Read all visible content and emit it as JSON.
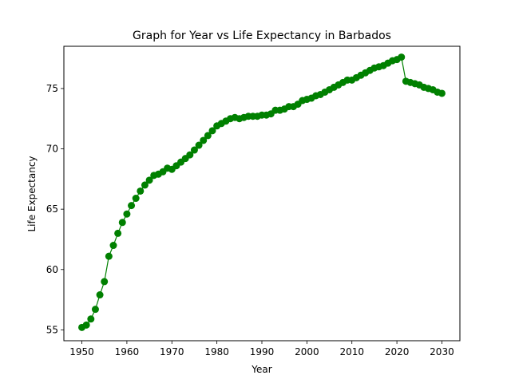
{
  "chart_data": {
    "type": "line",
    "title": "Graph for Year vs Life Expectancy in Barbados",
    "xlabel": "Year",
    "ylabel": "Life Expectancy",
    "xlim": [
      1946,
      2034
    ],
    "ylim": [
      54.1,
      78.5
    ],
    "xticks": [
      1950,
      1960,
      1970,
      1980,
      1990,
      2000,
      2010,
      2020,
      2030
    ],
    "yticks": [
      55,
      60,
      65,
      70,
      75
    ],
    "grid": false,
    "line_color": "#008000",
    "marker": "circle",
    "series": [
      {
        "x": [
          1950,
          1951,
          1952,
          1953,
          1954,
          1955,
          1956,
          1957,
          1958,
          1959,
          1960,
          1961,
          1962,
          1963,
          1964,
          1965,
          1966,
          1967,
          1968,
          1969,
          1970,
          1971,
          1972,
          1973,
          1974,
          1975,
          1976,
          1977,
          1978,
          1979,
          1980,
          1981,
          1982,
          1983,
          1984,
          1985,
          1986,
          1987,
          1988,
          1989,
          1990,
          1991,
          1992,
          1993,
          1994,
          1995,
          1996,
          1997,
          1998,
          1999,
          2000,
          2001,
          2002,
          2003,
          2004,
          2005,
          2006,
          2007,
          2008,
          2009,
          2010,
          2011,
          2012,
          2013,
          2014,
          2015,
          2016,
          2017,
          2018,
          2019,
          2020,
          2021,
          2022,
          2023,
          2024,
          2025,
          2026,
          2027,
          2028,
          2029,
          2030
        ],
        "y": [
          55.2,
          55.4,
          55.9,
          56.7,
          57.9,
          59.0,
          61.1,
          62.0,
          63.0,
          63.9,
          64.6,
          65.3,
          65.9,
          66.5,
          67.0,
          67.4,
          67.8,
          67.9,
          68.1,
          68.4,
          68.3,
          68.6,
          68.9,
          69.2,
          69.5,
          69.9,
          70.3,
          70.7,
          71.1,
          71.5,
          71.9,
          72.1,
          72.3,
          72.5,
          72.6,
          72.5,
          72.6,
          72.7,
          72.7,
          72.7,
          72.8,
          72.8,
          72.9,
          73.2,
          73.2,
          73.3,
          73.5,
          73.5,
          73.7,
          74.0,
          74.1,
          74.2,
          74.4,
          74.5,
          74.7,
          74.9,
          75.1,
          75.3,
          75.5,
          75.7,
          75.7,
          75.9,
          76.1,
          76.3,
          76.5,
          76.7,
          76.8,
          76.9,
          77.1,
          77.3,
          77.4,
          77.6,
          75.6,
          75.5,
          75.4,
          75.3,
          75.1,
          75.0,
          74.9,
          74.7,
          74.6
        ]
      }
    ]
  }
}
